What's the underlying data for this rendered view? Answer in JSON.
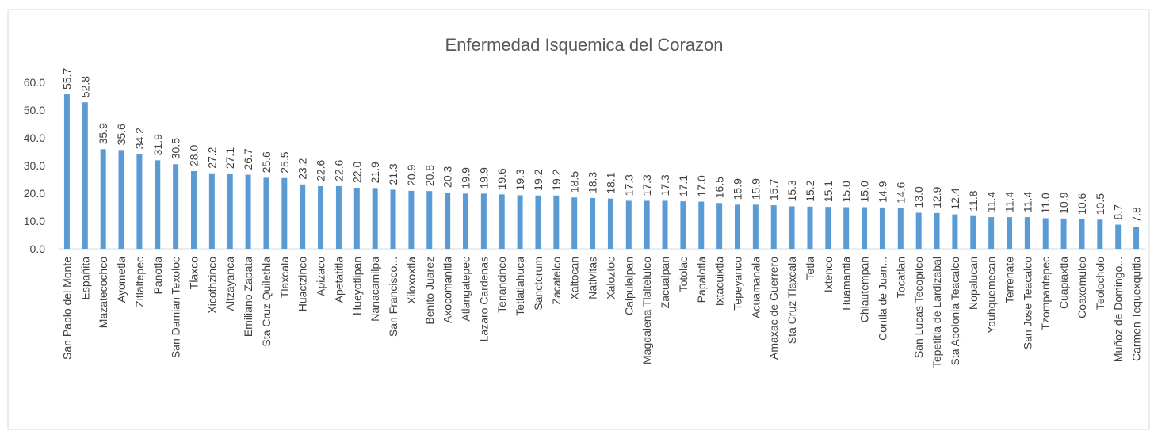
{
  "chart_data": {
    "type": "bar",
    "title": "Enfermedad Isquemica del Corazon",
    "categories": [
      "San Pablo del Monte",
      "Españita",
      "Mazatecochco",
      "Ayometla",
      "Zitlaltepec",
      "Panotla",
      "San Damian Texoloc",
      "Tlaxco",
      "Xicothzinco",
      "Altzayanca",
      "Emiliano Zapata",
      "Sta Cruz Quilethla",
      "Tlaxcala",
      "Huactzinco",
      "Apizaco",
      "Apetatitla",
      "Hueyotlipan",
      "Nanacamilpa",
      "San Francisco...",
      "Xiloxoxtla",
      "Benito Juarez",
      "Axocomanitla",
      "Atlangatepec",
      "Lazaro Cardenas",
      "Tenancinco",
      "Tetlatlahuca",
      "Sanctorum",
      "Zacatelco",
      "Xaltocan",
      "Nativitas",
      "Xaloztoc",
      "Calpulalpan",
      "Magdalena Tlaltelulco",
      "Zacualpan",
      "Totolac",
      "Papalotla",
      "Ixtacuixtla",
      "Tepeyanco",
      "Acuamanala",
      "Amaxac de Guerrero",
      "Sta Cruz Tlaxcala",
      "Tetla",
      "Ixtenco",
      "Huamantla",
      "Chiautempan",
      "Contla de Juan...",
      "Tocatlan",
      "San Lucas Tecopilco",
      "Tepetitla de Lardizabal",
      "Sta Apolonia Teacalco",
      "Nopalucan",
      "Yauhquemecan",
      "Terrenate",
      "San Jose Teacalco",
      "Tzompantepec",
      "Cuapiaxtla",
      "Coaxomulco",
      "Teolocholo",
      "Muñoz de Domingo...",
      "Carmen Tequexquitla"
    ],
    "values": [
      55.7,
      52.8,
      35.9,
      35.6,
      34.2,
      31.9,
      30.5,
      28.0,
      27.2,
      27.1,
      26.7,
      25.6,
      25.5,
      23.2,
      22.6,
      22.6,
      22.0,
      21.9,
      21.3,
      20.9,
      20.8,
      20.3,
      19.9,
      19.9,
      19.6,
      19.3,
      19.2,
      19.2,
      18.5,
      18.3,
      18.1,
      17.3,
      17.3,
      17.3,
      17.1,
      17.0,
      16.5,
      15.9,
      15.9,
      15.7,
      15.3,
      15.2,
      15.1,
      15.0,
      15.0,
      14.9,
      14.6,
      13.0,
      12.9,
      12.4,
      11.8,
      11.4,
      11.4,
      11.4,
      11.0,
      10.9,
      10.6,
      10.5,
      8.7,
      7.8
    ],
    "value_labels": [
      "55.7",
      "52.8",
      "35.9",
      "35.6",
      "34.2",
      "31.9",
      "30.5",
      "28.0",
      "27.2",
      "27.1",
      "26.7",
      "25.6",
      "25.5",
      "23.2",
      "22.6",
      "22.6",
      "22.0",
      "21.9",
      "21.3",
      "20.9",
      "20.8",
      "20.3",
      "19.9",
      "19.9",
      "19.6",
      "19.3",
      "19.2",
      "19.2",
      "18.5",
      "18.3",
      "18.1",
      "17.3",
      "17.3",
      "17.3",
      "17.1",
      "17.0",
      "16.5",
      "15.9",
      "15.9",
      "15.7",
      "15.3",
      "15.2",
      "15.1",
      "15.0",
      "15.0",
      "14.9",
      "14.6",
      "13.0",
      "12.9",
      "12.4",
      "11.8",
      "11.4",
      "11.4",
      "11.4",
      "11.0",
      "10.9",
      "10.6",
      "10.5",
      "8.7",
      "7.8"
    ],
    "color": "#5b9bd5",
    "ylim": [
      0,
      60
    ],
    "yticks": [
      {
        "value": 0,
        "label": "0.0"
      },
      {
        "value": 10,
        "label": "10.0"
      },
      {
        "value": 20,
        "label": "20.0"
      },
      {
        "value": 30,
        "label": "30.0"
      },
      {
        "value": 40,
        "label": "40.0"
      },
      {
        "value": 50,
        "label": "50.0"
      },
      {
        "value": 60,
        "label": "60.0"
      }
    ],
    "grid": false
  }
}
